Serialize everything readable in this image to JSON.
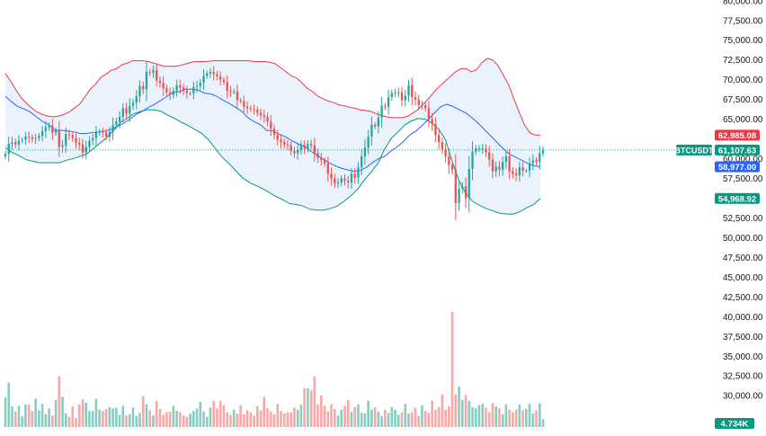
{
  "chart_data": {
    "type": "candlestick",
    "symbol": "BTCUSDT",
    "ylim": [
      29000,
      80000
    ],
    "y_ticks": [
      {
        "value": 80000,
        "label": "80,000.00"
      },
      {
        "value": 77500,
        "label": "77,500.00"
      },
      {
        "value": 75000,
        "label": "75,000.00"
      },
      {
        "value": 72500,
        "label": "72,500.00"
      },
      {
        "value": 70000,
        "label": "70,000.00"
      },
      {
        "value": 67500,
        "label": "67,500.00"
      },
      {
        "value": 65000,
        "label": "65,000.00"
      },
      {
        "value": 60000,
        "label": "60,000.00"
      },
      {
        "value": 57500,
        "label": "57,500.00"
      },
      {
        "value": 52500,
        "label": "52,500.00"
      },
      {
        "value": 50000,
        "label": "50,000.00"
      },
      {
        "value": 47500,
        "label": "47,500.00"
      },
      {
        "value": 45000,
        "label": "45,000.00"
      },
      {
        "value": 42500,
        "label": "42,500.00"
      },
      {
        "value": 40000,
        "label": "40,000.00"
      },
      {
        "value": 37500,
        "label": "37,500.00"
      },
      {
        "value": 35000,
        "label": "35,000.00"
      },
      {
        "value": 32500,
        "label": "32,500.00"
      },
      {
        "value": 30000,
        "label": "30,000.00"
      }
    ],
    "price_tags": [
      {
        "label": "BTCUSDT",
        "role": "symbol",
        "value": 61107.63,
        "color": "#089981"
      },
      {
        "label": "61,107.63",
        "role": "last-price",
        "value": 61107.63,
        "color": "#089981"
      },
      {
        "label": "62,985.08",
        "role": "upper-band",
        "value": 62985.08,
        "color": "#f23645"
      },
      {
        "label": "58,977.00",
        "role": "basis",
        "value": 58977.0,
        "color": "#2962ff"
      },
      {
        "label": "54,968.92",
        "role": "lower-band",
        "value": 54968.92,
        "color": "#089981"
      },
      {
        "label": "4.734K",
        "role": "volume",
        "value": 4734,
        "color": "#089981"
      }
    ],
    "bottom_legend": "",
    "indicator": "bollinger-bands",
    "colors": {
      "up": "#26a69a",
      "down": "#ef5350",
      "upper": "#f23645",
      "basis": "#2962ff",
      "lower": "#089981",
      "band_fill": "#e3eefc",
      "vol_up": "#89cdc2",
      "vol_down": "#f7a9a7"
    },
    "closes": [
      60600,
      61900,
      62100,
      61800,
      62300,
      62400,
      62800,
      62700,
      62500,
      62600,
      62900,
      63500,
      64000,
      64200,
      63300,
      63600,
      61500,
      61700,
      63100,
      63000,
      62600,
      62000,
      61800,
      60800,
      61500,
      62300,
      62600,
      63300,
      63400,
      63300,
      62800,
      63400,
      64300,
      64700,
      65300,
      66400,
      65700,
      66700,
      67100,
      67900,
      69200,
      68800,
      71000,
      70900,
      71200,
      69900,
      69600,
      68900,
      68400,
      68100,
      68600,
      69300,
      69000,
      68600,
      68300,
      68300,
      69100,
      69200,
      69600,
      70500,
      70800,
      71000,
      70700,
      70400,
      70000,
      69700,
      68600,
      68500,
      68500,
      67400,
      67300,
      66600,
      66400,
      66300,
      66200,
      65800,
      65500,
      65300,
      64700,
      63800,
      63000,
      62400,
      62100,
      61800,
      61700,
      61000,
      60700,
      61100,
      61700,
      61300,
      61900,
      61700,
      60700,
      60100,
      59800,
      59400,
      58100,
      57500,
      56900,
      57000,
      57500,
      57200,
      57000,
      58100,
      57600,
      58900,
      60300,
      61400,
      62800,
      64300,
      64100,
      65200,
      66700,
      66600,
      67800,
      68300,
      68400,
      68400,
      67400,
      68000,
      69300,
      67800,
      67500,
      66800,
      66800,
      66400,
      65000,
      64400,
      63000,
      62100,
      61200,
      60300,
      59200,
      58600,
      54400,
      56200,
      56500,
      55000,
      58700,
      60900,
      61300,
      61300,
      61300,
      60800,
      59900,
      58400,
      59000,
      58600,
      59600,
      60300,
      58400,
      58100,
      57900,
      58900,
      58500,
      58500,
      59400,
      59800,
      59600,
      60700,
      61107.63
    ],
    "upper_band": [
      70800,
      69800,
      68700,
      67700,
      67000,
      66400,
      65900,
      65600,
      65400,
      65300,
      65400,
      65600,
      65900,
      66400,
      66900,
      67800,
      68800,
      69400,
      70300,
      70700,
      71200,
      71400,
      71900,
      72100,
      72400,
      72400,
      72400,
      72300,
      72100,
      71900,
      71700,
      71700,
      71700,
      71800,
      72000,
      72200,
      72300,
      72300,
      72300,
      72400,
      72400,
      72400,
      72400,
      72400,
      72400,
      72400,
      72400,
      72300,
      72300,
      72300,
      72200,
      72000,
      71500,
      71000,
      70500,
      70200,
      69600,
      68900,
      68500,
      67900,
      67600,
      67300,
      67100,
      66800,
      66700,
      66500,
      66400,
      66200,
      66100,
      66000,
      65700,
      65500,
      65300,
      65200,
      65200,
      65200,
      65400,
      65800,
      66300,
      67000,
      67700,
      68500,
      69200,
      69800,
      70400,
      71000,
      71400,
      71400,
      71000,
      71300,
      72200,
      72700,
      72500,
      71800,
      70600,
      69400,
      67600,
      65900,
      64300,
      63300,
      63000,
      63000
    ],
    "basis": [
      67900,
      67200,
      66600,
      66300,
      65900,
      65300,
      64700,
      64300,
      63600,
      63600,
      63500,
      63400,
      63200,
      63200,
      63300,
      63400,
      63500,
      63700,
      64100,
      64500,
      65000,
      65600,
      66000,
      66500,
      66900,
      67400,
      67900,
      68400,
      68500,
      68800,
      68800,
      68700,
      68300,
      68200,
      67900,
      67400,
      67000,
      66500,
      66000,
      65200,
      64700,
      64300,
      63600,
      63500,
      63100,
      62800,
      62300,
      61900,
      61600,
      61000,
      60500,
      60000,
      59500,
      59100,
      58800,
      58600,
      58400,
      58500,
      58900,
      59500,
      60000,
      60300,
      61000,
      61500,
      62200,
      63000,
      63500,
      64200,
      65000,
      65800,
      66600,
      66900,
      66600,
      66200,
      65800,
      65200,
      64500,
      63700,
      62900,
      62100,
      61300,
      60600,
      60200,
      59800,
      59400,
      59100,
      58977
    ],
    "lower_band": [
      61400,
      60800,
      60400,
      59900,
      59700,
      59500,
      59500,
      59500,
      59500,
      59800,
      60000,
      60300,
      60600,
      61300,
      62000,
      62700,
      63600,
      64600,
      65100,
      65700,
      66000,
      66200,
      66200,
      66000,
      65500,
      65100,
      64600,
      64200,
      63700,
      63200,
      62400,
      61300,
      60200,
      59400,
      58500,
      57600,
      57000,
      56600,
      56200,
      55700,
      55200,
      54800,
      54300,
      54200,
      54000,
      53600,
      53500,
      53500,
      53700,
      54000,
      54600,
      55300,
      56100,
      57300,
      58300,
      59400,
      61200,
      62600,
      63400,
      64300,
      64800,
      65100,
      65000,
      64500,
      63700,
      62400,
      59600,
      57200,
      55600,
      54600,
      54100,
      53700,
      53400,
      53100,
      53000,
      53000,
      53300,
      53800,
      54200,
      54968.92
    ],
    "volume_bars": [
      4.6,
      6.9,
      3.2,
      2.4,
      3.3,
      1.7,
      3.5,
      3.5,
      2.5,
      4.4,
      2.6,
      3.6,
      2.0,
      2.9,
      1.8,
      4.2,
      7.9,
      4.7,
      2.1,
      1.6,
      3.2,
      1.4,
      3.5,
      4.3,
      3.8,
      2.5,
      2.5,
      4.4,
      2.7,
      2.5,
      2.8,
      3.1,
      2.9,
      3.0,
      1.9,
      3.3,
      1.8,
      2.0,
      3.0,
      1.7,
      2.2,
      4.8,
      3.5,
      2.6,
      1.8,
      4.1,
      2.8,
      1.9,
      2.3,
      2.4,
      3.3,
      2.5,
      2.3,
      1.8,
      1.6,
      2.1,
      2.5,
      2.9,
      3.9,
      2.4,
      1.6,
      3.0,
      4.1,
      2.9,
      4.1,
      3.4,
      2.3,
      1.9,
      2.7,
      2.1,
      3.4,
      2.0,
      2.6,
      2.3,
      1.8,
      3.2,
      2.6,
      4.7,
      2.9,
      2.4,
      2.0,
      3.6,
      2.5,
      2.1,
      2.3,
      2.3,
      3.0,
      2.7,
      3.5,
      6.0,
      6.0,
      5.7,
      7.9,
      3.5,
      4.9,
      3.3,
      2.4,
      3.5,
      2.8,
      1.8,
      2.7,
      3.3,
      4.2,
      2.4,
      3.1,
      3.5,
      2.2,
      2.1,
      4.1,
      2.7,
      3.1,
      2.4,
      1.7,
      2.7,
      2.2,
      3.1,
      2.7,
      1.9,
      2.3,
      3.6,
      2.1,
      2.3,
      3.0,
      1.7,
      3.4,
      2.5,
      2.2,
      4.1,
      2.7,
      3.1,
      5.1,
      2.7,
      3.2,
      17.9,
      5.1,
      6.3,
      4.2,
      5.0,
      4.1,
      3.1,
      2.9,
      3.4,
      3.6,
      3.0,
      2.3,
      3.7,
      3.2,
      2.9,
      2.0,
      3.5,
      2.7,
      2.3,
      2.7,
      3.5,
      2.6,
      2.8,
      3.6,
      2.1,
      2.6,
      3.7,
      1.2
    ]
  }
}
